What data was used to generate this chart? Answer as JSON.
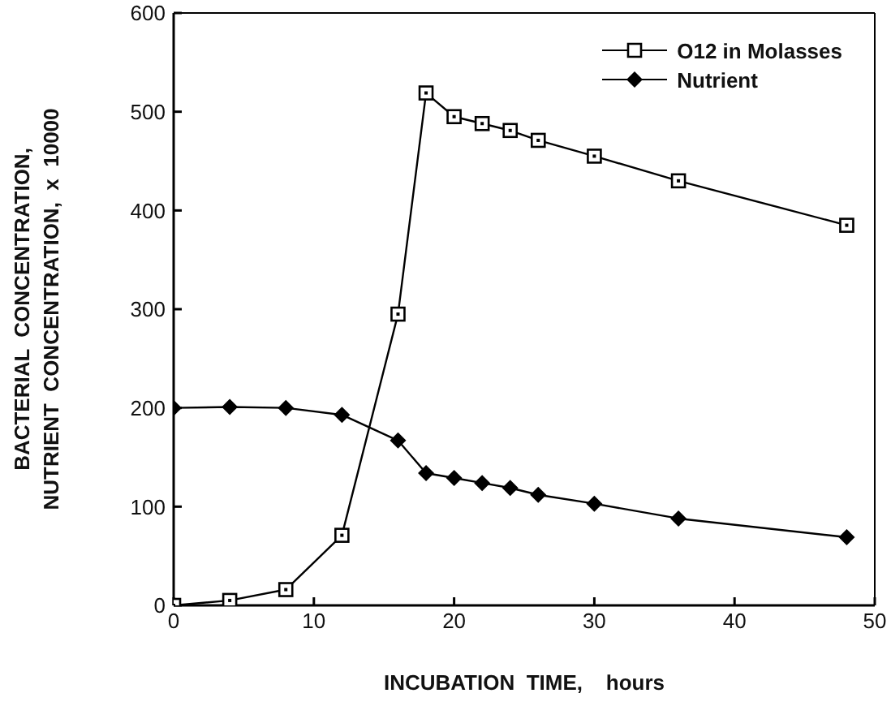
{
  "chart_data": {
    "type": "line",
    "xlabel": "INCUBATION  TIME,    hours",
    "ylabel": "BACTERIAL  CONCENTRATION,\nNUTRIENT  CONCENTRATION,  x  10000",
    "x": [
      0,
      4,
      8,
      12,
      16,
      18,
      20,
      22,
      24,
      26,
      30,
      36,
      48
    ],
    "series": [
      {
        "name": "O12 in Molasses",
        "color": "#000000",
        "marker": "square",
        "values": [
          0,
          5,
          16,
          71,
          295,
          519,
          495,
          488,
          481,
          471,
          455,
          430,
          385
        ]
      },
      {
        "name": "Nutrient",
        "color": "#000000",
        "marker": "diamond",
        "values": [
          200,
          201,
          200,
          193,
          167,
          134,
          129,
          124,
          119,
          112,
          103,
          88,
          69
        ]
      }
    ],
    "xlim": [
      0,
      50
    ],
    "xticks": [
      0,
      10,
      20,
      30,
      40,
      50
    ],
    "ylim": [
      0,
      600
    ],
    "yticks": [
      0,
      100,
      200,
      300,
      400,
      500,
      600
    ],
    "grid": false,
    "legend": "top right",
    "line_style": "solid"
  }
}
